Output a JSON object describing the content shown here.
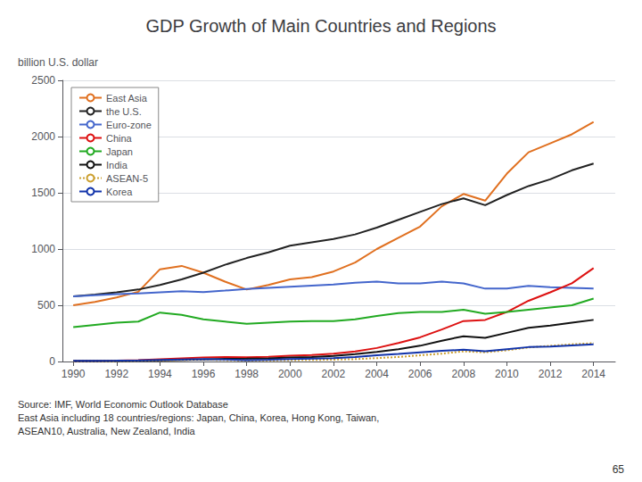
{
  "chart_data": {
    "type": "line",
    "title": "GDP Growth of Main Countries and Regions",
    "ylabel": "billion U.S. dollar",
    "x": [
      1990,
      1991,
      1992,
      1993,
      1994,
      1995,
      1996,
      1997,
      1998,
      1999,
      2000,
      2001,
      2002,
      2003,
      2004,
      2005,
      2006,
      2007,
      2008,
      2009,
      2010,
      2011,
      2012,
      2013,
      2014
    ],
    "series": [
      {
        "name": "East Asia",
        "color": "#E07020",
        "values": [
          500,
          530,
          570,
          620,
          820,
          850,
          790,
          710,
          640,
          680,
          730,
          750,
          800,
          880,
          1000,
          1100,
          1200,
          1380,
          1490,
          1430,
          1670,
          1860,
          1940,
          2020,
          2130
        ]
      },
      {
        "name": "the U.S.",
        "color": "#222222",
        "values": [
          580,
          595,
          615,
          640,
          680,
          730,
          790,
          860,
          920,
          970,
          1030,
          1060,
          1090,
          1130,
          1190,
          1260,
          1330,
          1400,
          1450,
          1390,
          1480,
          1560,
          1620,
          1700,
          1760
        ]
      },
      {
        "name": "Euro-zone",
        "color": "#4466CC",
        "values": [
          580,
          590,
          600,
          605,
          615,
          625,
          618,
          630,
          645,
          655,
          665,
          675,
          685,
          700,
          710,
          695,
          695,
          710,
          695,
          648,
          648,
          672,
          660,
          655,
          648
        ]
      },
      {
        "name": "China",
        "color": "#DD1111",
        "values": [
          5,
          6,
          8,
          12,
          20,
          28,
          35,
          40,
          38,
          42,
          52,
          58,
          70,
          90,
          120,
          165,
          215,
          285,
          360,
          370,
          440,
          540,
          615,
          695,
          830
        ]
      },
      {
        "name": "Japan",
        "color": "#22AA22",
        "values": [
          305,
          325,
          345,
          355,
          435,
          415,
          375,
          355,
          335,
          345,
          355,
          360,
          360,
          375,
          405,
          430,
          440,
          440,
          460,
          425,
          440,
          460,
          480,
          500,
          560
        ]
      },
      {
        "name": "India",
        "color": "#111111",
        "values": [
          3,
          4,
          5,
          7,
          10,
          14,
          18,
          23,
          25,
          28,
          35,
          40,
          50,
          65,
          85,
          110,
          140,
          185,
          225,
          210,
          255,
          300,
          320,
          345,
          370
        ]
      },
      {
        "name": "ASEAN-5",
        "color": "#CCA030",
        "line_style": "dotted",
        "values": [
          3,
          4,
          5,
          7,
          10,
          14,
          17,
          13,
          9,
          10,
          12,
          14,
          16,
          21,
          30,
          40,
          55,
          70,
          90,
          82,
          100,
          125,
          140,
          153,
          163
        ]
      },
      {
        "name": "Korea",
        "color": "#1133AA",
        "values": [
          5,
          6,
          7,
          9,
          13,
          17,
          21,
          18,
          12,
          16,
          22,
          26,
          30,
          40,
          55,
          68,
          82,
          95,
          105,
          92,
          110,
          128,
          132,
          142,
          152
        ]
      }
    ],
    "xlim": [
      1989.5,
      2015.0
    ],
    "xticks": [
      1990,
      1992,
      1994,
      1996,
      1998,
      2000,
      2002,
      2004,
      2006,
      2008,
      2010,
      2012,
      2014
    ],
    "ylim": [
      0,
      2500
    ],
    "yticks": [
      0,
      500,
      1000,
      1500,
      2000,
      2500
    ],
    "grid": true,
    "legend": "upper left",
    "annotations": [
      "Source: IMF, World Economic Outlook Database\nEast Asia including 18 countries/regions: Japan, China, Korea, Hong Kong, Taiwan,\nASEAN10, Australia, New Zealand, India",
      "65"
    ]
  }
}
